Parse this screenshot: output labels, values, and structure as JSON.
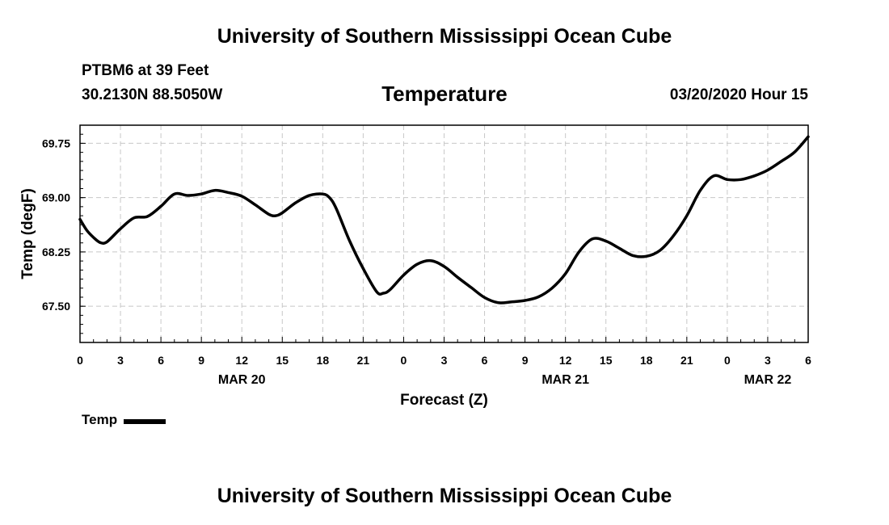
{
  "header": {
    "top_title": "University of Southern Mississippi Ocean Cube",
    "station": "PTBM6 at 39 Feet",
    "coords": "30.2130N 88.5050W",
    "chart_title": "Temperature",
    "datetime": "03/20/2020 Hour 15",
    "bottom_title": "University of Southern Mississippi Ocean Cube"
  },
  "legend": {
    "label": "Temp",
    "color": "#000000"
  },
  "chart_data": {
    "type": "line",
    "title": "Temperature",
    "xlabel": "Forecast (Z)",
    "ylabel": "Temp (degF)",
    "ylim": [
      67.0,
      70.0
    ],
    "yticks": [
      67.5,
      68.25,
      69.0,
      69.75
    ],
    "ytick_labels": [
      "67.50",
      "68.25",
      "69.00",
      "69.75"
    ],
    "xlim": [
      0,
      54
    ],
    "xticks": [
      0,
      3,
      6,
      9,
      12,
      15,
      18,
      21,
      24,
      27,
      30,
      33,
      36,
      39,
      42,
      45,
      48,
      51,
      54
    ],
    "xtick_labels": [
      "0",
      "3",
      "6",
      "9",
      "12",
      "15",
      "18",
      "21",
      "0",
      "3",
      "6",
      "9",
      "12",
      "15",
      "18",
      "21",
      "0",
      "3",
      "6"
    ],
    "date_labels": [
      {
        "x": 12,
        "label": "MAR 20"
      },
      {
        "x": 36,
        "label": "MAR 21"
      },
      {
        "x": 51,
        "label": "MAR 22"
      }
    ],
    "grid": true,
    "series": [
      {
        "name": "Temp",
        "x": [
          0,
          0.5,
          1,
          1.5,
          2,
          3,
          4,
          5,
          6,
          7,
          8,
          9,
          10,
          11,
          12,
          13,
          14,
          14.5,
          15,
          16,
          17,
          18,
          18.5,
          19,
          20,
          21,
          22,
          22.5,
          23,
          24,
          25,
          26,
          27,
          28,
          29,
          30,
          31,
          32,
          33,
          34,
          35,
          36,
          37,
          38,
          39,
          40,
          41,
          42,
          43,
          44,
          45,
          46,
          47,
          48,
          49,
          50,
          51,
          52,
          53,
          54
        ],
        "values": [
          68.7,
          68.55,
          68.45,
          68.38,
          68.39,
          68.57,
          68.72,
          68.74,
          68.88,
          69.05,
          69.03,
          69.05,
          69.1,
          69.07,
          69.02,
          68.9,
          68.77,
          68.75,
          68.79,
          68.93,
          69.03,
          69.05,
          69.0,
          68.85,
          68.4,
          68.02,
          67.7,
          67.68,
          67.73,
          67.93,
          68.08,
          68.13,
          68.05,
          67.9,
          67.76,
          67.62,
          67.55,
          67.56,
          67.58,
          67.63,
          67.75,
          67.95,
          68.25,
          68.43,
          68.4,
          68.3,
          68.2,
          68.19,
          68.27,
          68.47,
          68.75,
          69.1,
          69.3,
          69.25,
          69.25,
          69.3,
          69.38,
          69.5,
          69.63,
          69.84
        ]
      }
    ]
  }
}
